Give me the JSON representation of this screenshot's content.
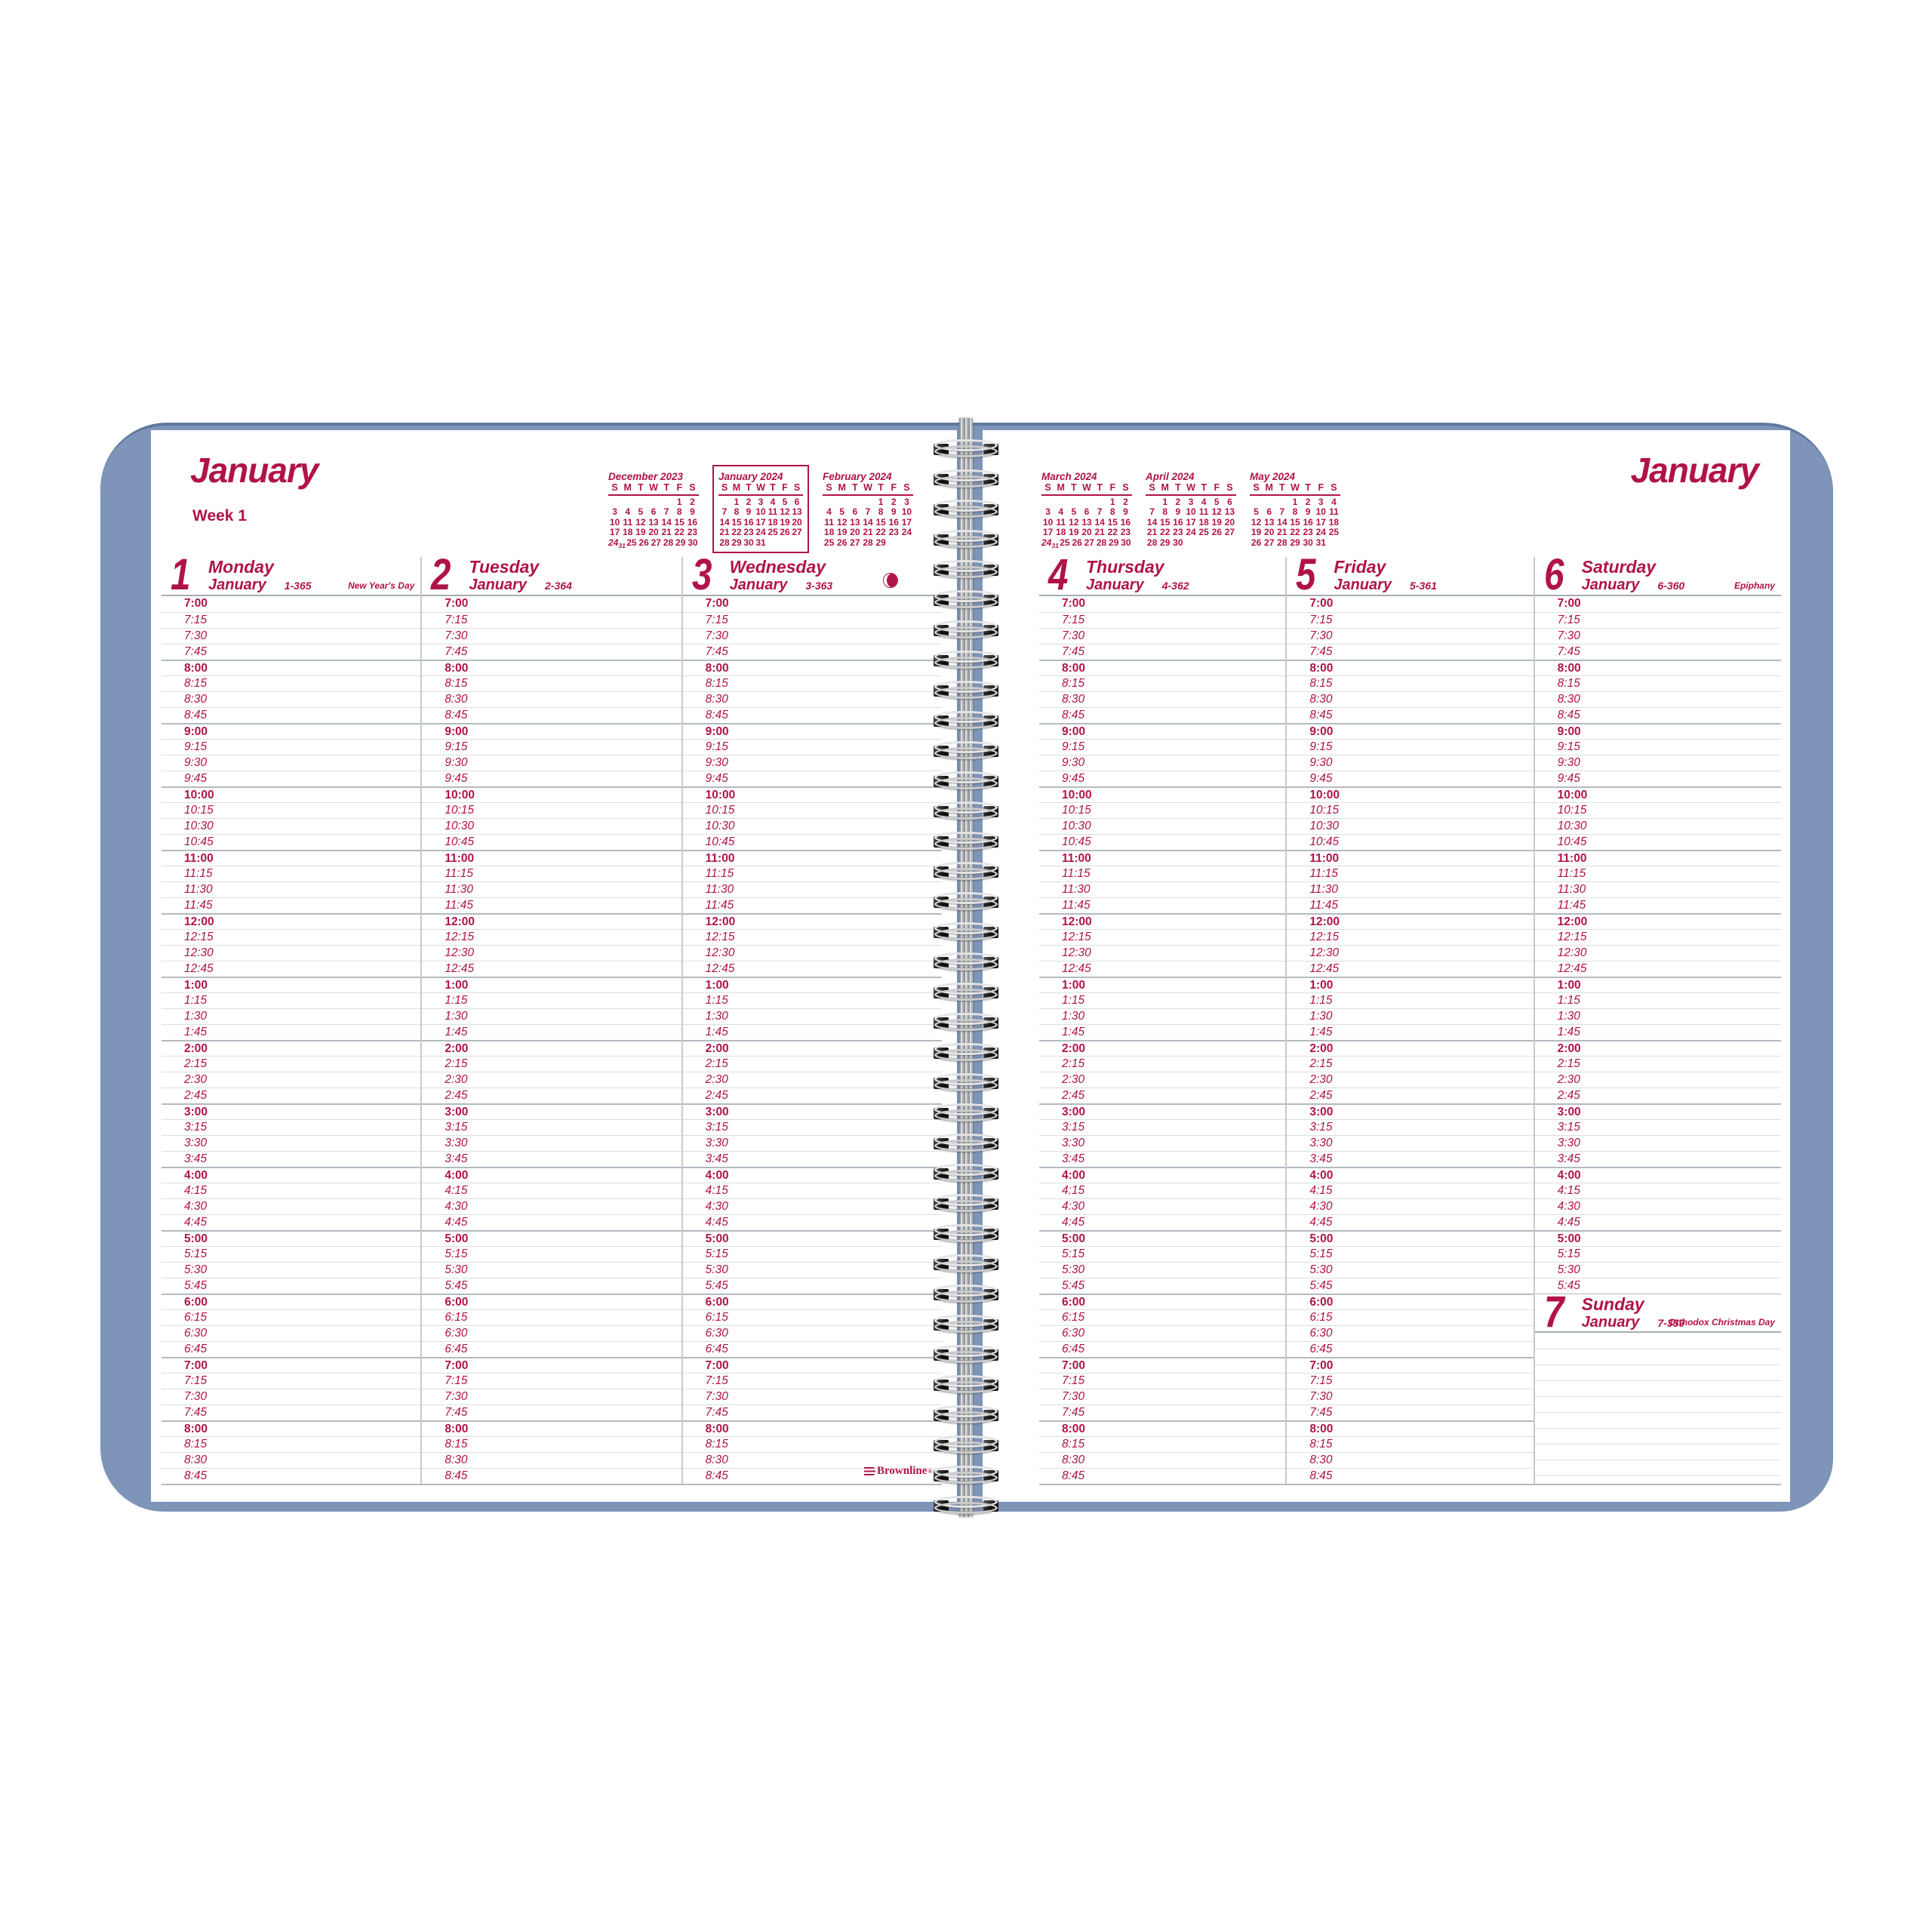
{
  "brand": {
    "name": "Brownline",
    "reg": "®"
  },
  "colors": {
    "crimson": "#b01349",
    "cover_blue": "#7e95b9"
  },
  "left_page": {
    "title": "January",
    "week_label": "Week 1"
  },
  "right_page": {
    "title": "January"
  },
  "mini_calendars": {
    "dow": [
      "S",
      "M",
      "T",
      "W",
      "T",
      "F",
      "S"
    ],
    "left": [
      {
        "title": "December 2023",
        "boxed": false,
        "weeks": [
          [
            "",
            "",
            "",
            "",
            "",
            "1",
            "2"
          ],
          [
            "3",
            "4",
            "5",
            "6",
            "7",
            "8",
            "9"
          ],
          [
            "10",
            "11",
            "12",
            "13",
            "14",
            "15",
            "16"
          ],
          [
            "17",
            "18",
            "19",
            "20",
            "21",
            "22",
            "23"
          ],
          [
            "24/31",
            "25",
            "26",
            "27",
            "28",
            "29",
            "30"
          ]
        ]
      },
      {
        "title": "January 2024",
        "boxed": true,
        "weeks": [
          [
            "",
            "1",
            "2",
            "3",
            "4",
            "5",
            "6"
          ],
          [
            "7",
            "8",
            "9",
            "10",
            "11",
            "12",
            "13"
          ],
          [
            "14",
            "15",
            "16",
            "17",
            "18",
            "19",
            "20"
          ],
          [
            "21",
            "22",
            "23",
            "24",
            "25",
            "26",
            "27"
          ],
          [
            "28",
            "29",
            "30",
            "31",
            "",
            "",
            ""
          ]
        ]
      },
      {
        "title": "February 2024",
        "boxed": false,
        "weeks": [
          [
            "",
            "",
            "",
            "",
            "1",
            "2",
            "3"
          ],
          [
            "4",
            "5",
            "6",
            "7",
            "8",
            "9",
            "10"
          ],
          [
            "11",
            "12",
            "13",
            "14",
            "15",
            "16",
            "17"
          ],
          [
            "18",
            "19",
            "20",
            "21",
            "22",
            "23",
            "24"
          ],
          [
            "25",
            "26",
            "27",
            "28",
            "29",
            "",
            ""
          ]
        ]
      }
    ],
    "right": [
      {
        "title": "March 2024",
        "boxed": false,
        "weeks": [
          [
            "",
            "",
            "",
            "",
            "",
            "1",
            "2"
          ],
          [
            "3",
            "4",
            "5",
            "6",
            "7",
            "8",
            "9"
          ],
          [
            "10",
            "11",
            "12",
            "13",
            "14",
            "15",
            "16"
          ],
          [
            "17",
            "18",
            "19",
            "20",
            "21",
            "22",
            "23"
          ],
          [
            "24/31",
            "25",
            "26",
            "27",
            "28",
            "29",
            "30"
          ]
        ]
      },
      {
        "title": "April 2024",
        "boxed": false,
        "weeks": [
          [
            "",
            "1",
            "2",
            "3",
            "4",
            "5",
            "6"
          ],
          [
            "7",
            "8",
            "9",
            "10",
            "11",
            "12",
            "13"
          ],
          [
            "14",
            "15",
            "16",
            "17",
            "18",
            "19",
            "20"
          ],
          [
            "21",
            "22",
            "23",
            "24",
            "25",
            "26",
            "27"
          ],
          [
            "28",
            "29",
            "30",
            "",
            "",
            "",
            ""
          ]
        ]
      },
      {
        "title": "May 2024",
        "boxed": false,
        "weeks": [
          [
            "",
            "",
            "",
            "1",
            "2",
            "3",
            "4"
          ],
          [
            "5",
            "6",
            "7",
            "8",
            "9",
            "10",
            "11"
          ],
          [
            "12",
            "13",
            "14",
            "15",
            "16",
            "17",
            "18"
          ],
          [
            "19",
            "20",
            "21",
            "22",
            "23",
            "24",
            "25"
          ],
          [
            "26",
            "27",
            "28",
            "29",
            "30",
            "31",
            ""
          ]
        ]
      }
    ]
  },
  "times": {
    "weekday": [
      "7:00",
      "7:15",
      "7:30",
      "7:45",
      "8:00",
      "8:15",
      "8:30",
      "8:45",
      "9:00",
      "9:15",
      "9:30",
      "9:45",
      "10:00",
      "10:15",
      "10:30",
      "10:45",
      "11:00",
      "11:15",
      "11:30",
      "11:45",
      "12:00",
      "12:15",
      "12:30",
      "12:45",
      "1:00",
      "1:15",
      "1:30",
      "1:45",
      "2:00",
      "2:15",
      "2:30",
      "2:45",
      "3:00",
      "3:15",
      "3:30",
      "3:45",
      "4:00",
      "4:15",
      "4:30",
      "4:45",
      "5:00",
      "5:15",
      "5:30",
      "5:45",
      "6:00",
      "6:15",
      "6:30",
      "6:45",
      "7:00",
      "7:15",
      "7:30",
      "7:45",
      "8:00",
      "8:15",
      "8:30",
      "8:45"
    ],
    "saturday_count": 44,
    "sunday_blank_rows": 10
  },
  "days": [
    {
      "num": "1",
      "name": "Monday",
      "month": "January",
      "code": "1-365",
      "holiday": "New Year's Day"
    },
    {
      "num": "2",
      "name": "Tuesday",
      "month": "January",
      "code": "2-364",
      "holiday": ""
    },
    {
      "num": "3",
      "name": "Wednesday",
      "month": "January",
      "code": "3-363",
      "holiday": "",
      "moon": "last-quarter-moon"
    },
    {
      "num": "4",
      "name": "Thursday",
      "month": "January",
      "code": "4-362",
      "holiday": ""
    },
    {
      "num": "5",
      "name": "Friday",
      "month": "January",
      "code": "5-361",
      "holiday": ""
    },
    {
      "num": "6",
      "name": "Saturday",
      "month": "January",
      "code": "6-360",
      "holiday": "Epiphany"
    },
    {
      "num": "7",
      "name": "Sunday",
      "month": "January",
      "code": "7-359",
      "holiday": "Orthodox Christmas Day"
    }
  ]
}
